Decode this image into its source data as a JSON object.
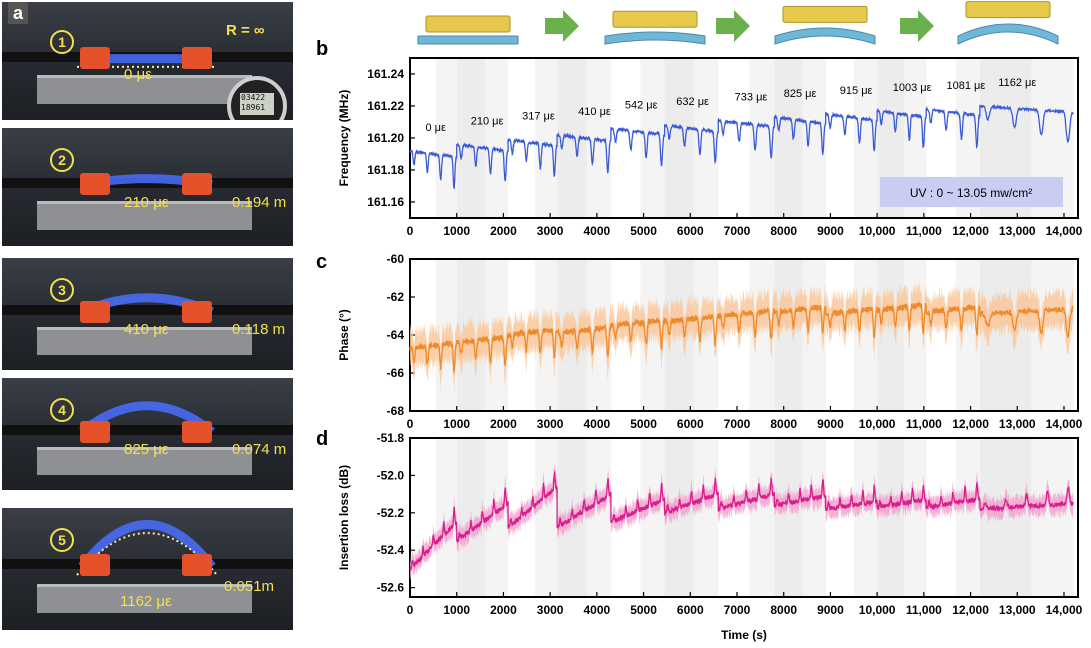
{
  "panel_letters": {
    "a": "a",
    "b": "b",
    "c": "c",
    "d": "d"
  },
  "photos": [
    {
      "num": "1",
      "strain": "0 με",
      "radius": "R = ∞"
    },
    {
      "num": "2",
      "strain": "210 με",
      "radius": "0.194 m"
    },
    {
      "num": "3",
      "strain": "410 με",
      "radius": "0.118 m"
    },
    {
      "num": "4",
      "strain": "825 με",
      "radius": "0.074 m"
    },
    {
      "num": "5",
      "strain": "1162 με",
      "radius": "0.051m"
    }
  ],
  "gauge_readout": [
    "03422",
    "18961"
  ],
  "colors": {
    "freq": "#3b5bd6",
    "phase": "#ef8a2a",
    "phase_band": "#f9c79a",
    "loss": "#d91e8c",
    "loss_band": "#f2a3cf",
    "uv_box": "#c9cdf2",
    "arrow": "#6ab04c"
  },
  "chart_data": [
    {
      "type": "line",
      "panel": "b",
      "ylabel": "Frequency (MHz)",
      "ylim": [
        161.15,
        161.25
      ],
      "yticks": [
        "161.16",
        "161.18",
        "161.20",
        "161.22",
        "161.24"
      ],
      "xticks": [
        "0",
        "1000",
        "2000",
        "3000",
        "4000",
        "5000",
        "6000",
        "7000",
        "8000",
        "9000",
        "10,000",
        "11,000",
        "12,000",
        "13,000",
        "14,000"
      ],
      "xlim": [
        0,
        14300
      ],
      "uv_label": "UV : 0 ~ 13.05 mw/cm²",
      "strain_labels": [
        {
          "t": 550,
          "label": "0 με"
        },
        {
          "t": 1650,
          "label": "210 με"
        },
        {
          "t": 2750,
          "label": "317 με"
        },
        {
          "t": 3950,
          "label": "410 με"
        },
        {
          "t": 4950,
          "label": "542 με"
        },
        {
          "t": 6050,
          "label": "632 με"
        },
        {
          "t": 7300,
          "label": "733 με"
        },
        {
          "t": 8350,
          "label": "825 με"
        },
        {
          "t": 9550,
          "label": "915 με"
        },
        {
          "t": 10750,
          "label": "1003 με"
        },
        {
          "t": 11900,
          "label": "1081 με"
        },
        {
          "t": 13000,
          "label": "1162 με"
        }
      ],
      "segment_bounds": [
        0,
        1000,
        2100,
        3150,
        4300,
        5450,
        6600,
        7800,
        8900,
        10000,
        11050,
        12200,
        14200
      ],
      "segment_start_values": [
        161.192,
        161.196,
        161.199,
        161.202,
        161.206,
        161.208,
        161.211,
        161.213,
        161.215,
        161.217,
        161.218,
        161.22
      ],
      "segment_drift": [
        -0.004,
        -0.004,
        -0.004,
        -0.004,
        -0.004,
        -0.004,
        -0.004,
        -0.004,
        -0.004,
        -0.004,
        -0.004,
        -0.004
      ],
      "dip_depth": 0.02,
      "color": "#3b5bd6"
    },
    {
      "type": "line",
      "panel": "c",
      "ylabel": "Phase (°)",
      "ylim": [
        -68,
        -60
      ],
      "yticks": [
        "-60",
        "-62",
        "-64",
        "-66",
        "-68"
      ],
      "xticks": [
        "0",
        "1000",
        "2000",
        "3000",
        "4000",
        "5000",
        "6000",
        "7000",
        "8000",
        "9000",
        "10,000",
        "11,000",
        "12,000",
        "13,000",
        "14,000"
      ],
      "xlim": [
        0,
        14300
      ],
      "segment_bounds": [
        0,
        1000,
        2100,
        3150,
        4300,
        5450,
        6600,
        7800,
        8900,
        10000,
        11050,
        12200,
        14200
      ],
      "segment_start_values": [
        -64.7,
        -64.4,
        -64.0,
        -63.9,
        -63.5,
        -63.3,
        -63.0,
        -62.8,
        -62.9,
        -62.7,
        -62.8,
        -62.9
      ],
      "dip_depth": 1.5,
      "color": "#ef8a2a"
    },
    {
      "type": "line",
      "panel": "d",
      "ylabel": "Insertion loss (dB)",
      "xlabel": "Time (s)",
      "ylim": [
        -52.65,
        -51.8
      ],
      "yticks": [
        "-51.8",
        "-52.0",
        "-52.2",
        "-52.4",
        "-52.6"
      ],
      "xticks": [
        "0",
        "1000",
        "2000",
        "3000",
        "4000",
        "5000",
        "6000",
        "7000",
        "8000",
        "9000",
        "10,000",
        "11,000",
        "12,000",
        "13,000",
        "14,000"
      ],
      "xlim": [
        0,
        14300
      ],
      "segment_bounds": [
        0,
        1000,
        2100,
        3150,
        4300,
        5450,
        6600,
        7800,
        8900,
        10000,
        11050,
        12200,
        14200
      ],
      "segment_start_values": [
        -52.5,
        -52.35,
        -52.28,
        -52.28,
        -52.25,
        -52.2,
        -52.18,
        -52.16,
        -52.18,
        -52.17,
        -52.17,
        -52.18
      ],
      "segment_rise": [
        0.25,
        0.2,
        0.22,
        0.18,
        0.12,
        0.1,
        0.08,
        0.05,
        0.04,
        0.04,
        0.04,
        0.03
      ],
      "color": "#d91e8c"
    }
  ]
}
